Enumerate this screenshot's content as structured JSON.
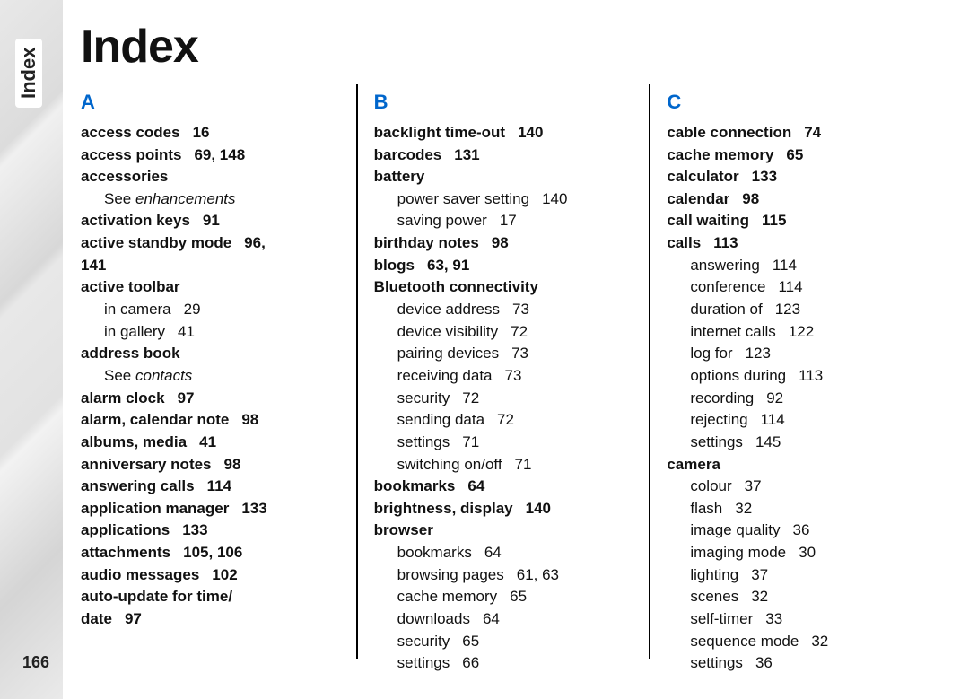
{
  "sideTab": "Index",
  "pageNumber": "166",
  "title": "Index",
  "columns": [
    {
      "letter": "A",
      "entries": [
        {
          "t": "b",
          "text": "access codes",
          "pages": "16"
        },
        {
          "t": "b",
          "text": "access points",
          "pages": "69, 148"
        },
        {
          "t": "b",
          "text": "accessories"
        },
        {
          "t": "see",
          "text": "enhancements"
        },
        {
          "t": "b",
          "text": "activation keys",
          "pages": "91"
        },
        {
          "t": "b",
          "text": "active standby mode",
          "pages": "96,"
        },
        {
          "t": "bcont",
          "text": "141"
        },
        {
          "t": "b",
          "text": "active toolbar"
        },
        {
          "t": "s",
          "text": "in camera",
          "pages": "29"
        },
        {
          "t": "s",
          "text": "in gallery",
          "pages": "41"
        },
        {
          "t": "b",
          "text": "address book"
        },
        {
          "t": "see",
          "text": "contacts"
        },
        {
          "t": "b",
          "text": "alarm clock",
          "pages": "97"
        },
        {
          "t": "b",
          "text": "alarm, calendar note",
          "pages": "98"
        },
        {
          "t": "b",
          "text": "albums, media",
          "pages": "41"
        },
        {
          "t": "b",
          "text": "anniversary notes",
          "pages": "98"
        },
        {
          "t": "b",
          "text": "answering calls",
          "pages": "114"
        },
        {
          "t": "b",
          "text": "application manager",
          "pages": "133"
        },
        {
          "t": "b",
          "text": "applications",
          "pages": "133"
        },
        {
          "t": "b",
          "text": "attachments",
          "pages": "105, 106"
        },
        {
          "t": "b",
          "text": "audio messages",
          "pages": "102"
        },
        {
          "t": "b",
          "text": "auto-update for time/"
        },
        {
          "t": "bcont2",
          "text": "date",
          "pages": "97"
        }
      ]
    },
    {
      "letter": "B",
      "entries": [
        {
          "t": "b",
          "text": "backlight time-out",
          "pages": "140"
        },
        {
          "t": "b",
          "text": "barcodes",
          "pages": "131"
        },
        {
          "t": "b",
          "text": "battery"
        },
        {
          "t": "s",
          "text": "power saver setting",
          "pages": "140"
        },
        {
          "t": "s",
          "text": "saving power",
          "pages": "17"
        },
        {
          "t": "b",
          "text": "birthday notes",
          "pages": "98"
        },
        {
          "t": "b",
          "text": "blogs",
          "pages": "63, 91"
        },
        {
          "t": "b",
          "text": "Bluetooth connectivity"
        },
        {
          "t": "s",
          "text": "device address",
          "pages": "73"
        },
        {
          "t": "s",
          "text": "device visibility",
          "pages": "72"
        },
        {
          "t": "s",
          "text": "pairing devices",
          "pages": "73"
        },
        {
          "t": "s",
          "text": "receiving data",
          "pages": "73"
        },
        {
          "t": "s",
          "text": "security",
          "pages": "72"
        },
        {
          "t": "s",
          "text": "sending data",
          "pages": "72"
        },
        {
          "t": "s",
          "text": "settings",
          "pages": "71"
        },
        {
          "t": "s",
          "text": "switching on/off",
          "pages": "71"
        },
        {
          "t": "b",
          "text": "bookmarks",
          "pages": "64"
        },
        {
          "t": "b",
          "text": "brightness, display",
          "pages": "140"
        },
        {
          "t": "b",
          "text": "browser"
        },
        {
          "t": "s",
          "text": "bookmarks",
          "pages": "64"
        },
        {
          "t": "s",
          "text": "browsing pages",
          "pages": "61, 63"
        },
        {
          "t": "s",
          "text": "cache memory",
          "pages": "65"
        },
        {
          "t": "s",
          "text": "downloads",
          "pages": "64"
        },
        {
          "t": "s",
          "text": "security",
          "pages": "65"
        },
        {
          "t": "s",
          "text": "settings",
          "pages": "66"
        }
      ]
    },
    {
      "letter": "C",
      "entries": [
        {
          "t": "b",
          "text": "cable connection",
          "pages": "74"
        },
        {
          "t": "b",
          "text": "cache memory",
          "pages": "65"
        },
        {
          "t": "b",
          "text": "calculator",
          "pages": "133"
        },
        {
          "t": "b",
          "text": "calendar",
          "pages": "98"
        },
        {
          "t": "b",
          "text": "call waiting",
          "pages": "115"
        },
        {
          "t": "b",
          "text": "calls",
          "pages": "113"
        },
        {
          "t": "s",
          "text": "answering",
          "pages": "114"
        },
        {
          "t": "s",
          "text": "conference",
          "pages": "114"
        },
        {
          "t": "s",
          "text": "duration of",
          "pages": "123"
        },
        {
          "t": "s",
          "text": "internet calls",
          "pages": "122"
        },
        {
          "t": "s",
          "text": "log for",
          "pages": "123"
        },
        {
          "t": "s",
          "text": "options during",
          "pages": "113"
        },
        {
          "t": "s",
          "text": "recording",
          "pages": "92"
        },
        {
          "t": "s",
          "text": "rejecting",
          "pages": "114"
        },
        {
          "t": "s",
          "text": "settings",
          "pages": "145"
        },
        {
          "t": "b",
          "text": "camera"
        },
        {
          "t": "s",
          "text": "colour",
          "pages": "37"
        },
        {
          "t": "s",
          "text": "flash",
          "pages": "32"
        },
        {
          "t": "s",
          "text": "image quality",
          "pages": "36"
        },
        {
          "t": "s",
          "text": "imaging mode",
          "pages": "30"
        },
        {
          "t": "s",
          "text": "lighting",
          "pages": "37"
        },
        {
          "t": "s",
          "text": "scenes",
          "pages": "32"
        },
        {
          "t": "s",
          "text": "self-timer",
          "pages": "33"
        },
        {
          "t": "s",
          "text": "sequence mode",
          "pages": "32"
        },
        {
          "t": "s",
          "text": "settings",
          "pages": "36"
        }
      ]
    }
  ]
}
